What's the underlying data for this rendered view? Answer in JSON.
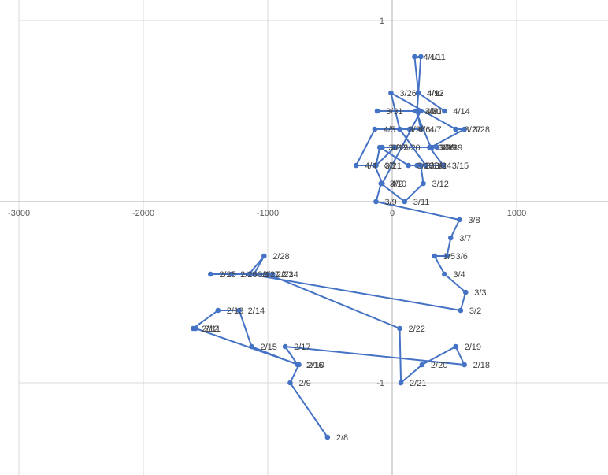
{
  "chart_data": {
    "type": "scatter",
    "title": "",
    "xlabel": "",
    "ylabel": "",
    "xlim": [
      -3000,
      1700
    ],
    "ylim": [
      -1.5,
      1.1
    ],
    "xticks": [
      -3000,
      -2000,
      -1000,
      0,
      1000
    ],
    "yticks": [
      -1,
      1
    ],
    "xtick_labels": [
      "-3000",
      "-2000",
      "-1000",
      "0",
      "1000"
    ],
    "ytick_labels": [
      "-1",
      "1"
    ],
    "grid": true,
    "marker_color": "#4472c4",
    "series": [
      {
        "points": [
          {
            "label": "2/8",
            "x": -520,
            "y": -1.3
          },
          {
            "label": "2/9",
            "x": -820,
            "y": -1.0
          },
          {
            "label": "2/10",
            "x": -750,
            "y": -0.9
          },
          {
            "label": "2/11",
            "x": -1580,
            "y": -0.7
          },
          {
            "label": "2/12",
            "x": -1600,
            "y": -0.7
          },
          {
            "label": "2/13",
            "x": -1400,
            "y": -0.6
          },
          {
            "label": "2/14",
            "x": -1230,
            "y": -0.6
          },
          {
            "label": "2/15",
            "x": -1130,
            "y": -0.8
          },
          {
            "label": "2/16",
            "x": -760,
            "y": -0.9
          },
          {
            "label": "2/17",
            "x": -860,
            "y": -0.8
          },
          {
            "label": "2/18",
            "x": 580,
            "y": -0.9
          },
          {
            "label": "2/19",
            "x": 510,
            "y": -0.8
          },
          {
            "label": "2/20",
            "x": 240,
            "y": -0.9
          },
          {
            "label": "2/21",
            "x": 70,
            "y": -1.0
          },
          {
            "label": "2/22",
            "x": 60,
            "y": -0.7
          },
          {
            "label": "2/23",
            "x": -1000,
            "y": -0.4
          },
          {
            "label": "2/24",
            "x": -960,
            "y": -0.4
          },
          {
            "label": "2/25",
            "x": -1460,
            "y": -0.4
          },
          {
            "label": "2/26",
            "x": -1290,
            "y": -0.4
          },
          {
            "label": "2/27",
            "x": -1110,
            "y": -0.4
          },
          {
            "label": "2/28",
            "x": -1030,
            "y": -0.3
          },
          {
            "label": "3/1",
            "x": -1150,
            "y": -0.4
          },
          {
            "label": "3/2",
            "x": 550,
            "y": -0.6
          },
          {
            "label": "3/3",
            "x": 590,
            "y": -0.5
          },
          {
            "label": "3/4",
            "x": 420,
            "y": -0.4
          },
          {
            "label": "3/5",
            "x": 340,
            "y": -0.3
          },
          {
            "label": "3/6",
            "x": 440,
            "y": -0.3
          },
          {
            "label": "3/7",
            "x": 470,
            "y": -0.2
          },
          {
            "label": "3/8",
            "x": 540,
            "y": -0.1
          },
          {
            "label": "3/9",
            "x": -130,
            "y": 0.0
          },
          {
            "label": "3/10",
            "x": -90,
            "y": 0.1
          },
          {
            "label": "3/11",
            "x": 100,
            "y": 0.0
          },
          {
            "label": "3/12",
            "x": 250,
            "y": 0.1
          },
          {
            "label": "3/13",
            "x": 230,
            "y": 0.2
          },
          {
            "label": "3/14",
            "x": 200,
            "y": 0.2
          },
          {
            "label": "3/15",
            "x": 410,
            "y": 0.2
          },
          {
            "label": "3/16",
            "x": 300,
            "y": 0.3
          },
          {
            "label": "3/17",
            "x": -80,
            "y": 0.3
          },
          {
            "label": "3/18",
            "x": 320,
            "y": 0.3
          },
          {
            "label": "3/19",
            "x": 360,
            "y": 0.3
          },
          {
            "label": "3/20",
            "x": 20,
            "y": 0.3
          },
          {
            "label": "3/21",
            "x": -130,
            "y": 0.2
          },
          {
            "label": "3/22",
            "x": -100,
            "y": 0.3
          },
          {
            "label": "3/23",
            "x": 130,
            "y": 0.2
          },
          {
            "label": "3/24",
            "x": 270,
            "y": 0.2
          },
          {
            "label": "3/25",
            "x": 60,
            "y": 0.4
          },
          {
            "label": "3/26",
            "x": -10,
            "y": 0.6
          },
          {
            "label": "3/27",
            "x": 510,
            "y": 0.4
          },
          {
            "label": "3/28",
            "x": 580,
            "y": 0.4
          },
          {
            "label": "3/29",
            "x": 310,
            "y": 0.3
          },
          {
            "label": "3/30",
            "x": 190,
            "y": 0.5
          },
          {
            "label": "3/31",
            "x": -120,
            "y": 0.5
          },
          {
            "label": "4/1",
            "x": 230,
            "y": 0.5
          },
          {
            "label": "4/2",
            "x": -80,
            "y": 0.1
          },
          {
            "label": "4/3",
            "x": -140,
            "y": 0.2
          },
          {
            "label": "4/4",
            "x": -290,
            "y": 0.2
          },
          {
            "label": "4/5",
            "x": -140,
            "y": 0.4
          },
          {
            "label": "4/6",
            "x": 140,
            "y": 0.4
          },
          {
            "label": "4/7",
            "x": 230,
            "y": 0.4
          },
          {
            "label": "4/8",
            "x": 200,
            "y": 0.5
          },
          {
            "label": "4/9",
            "x": 210,
            "y": 0.6
          },
          {
            "label": "4/10",
            "x": 180,
            "y": 0.8
          },
          {
            "label": "4/11",
            "x": 230,
            "y": 0.8
          },
          {
            "label": "4/12",
            "x": 210,
            "y": 0.6
          },
          {
            "label": "4/13",
            "x": 210,
            "y": 0.6
          },
          {
            "label": "4/14",
            "x": 420,
            "y": 0.5
          }
        ]
      }
    ]
  }
}
